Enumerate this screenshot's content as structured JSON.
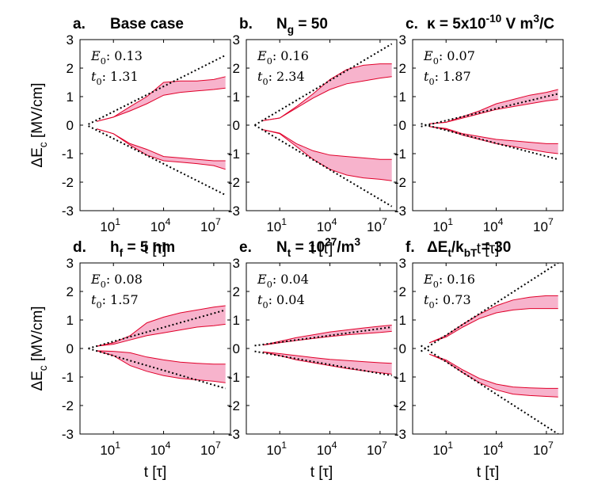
{
  "colors": {
    "band_fill": "#f7b3cc",
    "band_edge": "#e0002a",
    "trend": "#000000",
    "axes": "#000000"
  },
  "chart_data": [
    {
      "type": "area",
      "letter": "a.",
      "title": "Base case",
      "xlabel": "t [τ]",
      "ylabel": "ΔE_c [MV/cm]",
      "xlim": [
        0.1,
        100000000.0
      ],
      "xticks": [
        1,
        4,
        7
      ],
      "ylim": [
        -3,
        3
      ],
      "yticks": [
        -3,
        -2,
        -1,
        0,
        1,
        2,
        3
      ],
      "params": {
        "E0": "0.13",
        "t0": "1.31"
      },
      "series": [
        {
          "name": "upper band",
          "x_log10": [
            0,
            1,
            2,
            3,
            4,
            5,
            6,
            7,
            7.7
          ],
          "low": [
            0.13,
            0.28,
            0.5,
            0.75,
            1.05,
            1.15,
            1.2,
            1.25,
            1.3
          ],
          "high": [
            0.13,
            0.28,
            0.65,
            1.0,
            1.5,
            1.55,
            1.55,
            1.6,
            1.7
          ]
        },
        {
          "name": "lower band",
          "x_log10": [
            0,
            1,
            2,
            3,
            4,
            5,
            6,
            7,
            7.7
          ],
          "low": [
            -0.13,
            -0.3,
            -0.7,
            -1.05,
            -1.25,
            -1.3,
            -1.35,
            -1.42,
            -1.55
          ],
          "high": [
            -0.13,
            -0.3,
            -0.65,
            -0.85,
            -1.1,
            -1.15,
            -1.2,
            -1.25,
            -1.25
          ]
        },
        {
          "name": "upper trend",
          "x_log10": [
            -0.5,
            7.7
          ],
          "y": [
            0.03,
            2.45
          ]
        },
        {
          "name": "lower trend",
          "x_log10": [
            -0.5,
            7.7
          ],
          "y": [
            -0.03,
            -2.45
          ]
        }
      ]
    },
    {
      "type": "area",
      "letter": "b.",
      "title": "N_g = 50",
      "xlabel": "t [τ]",
      "ylabel": "",
      "xlim": [
        0.1,
        100000000.0
      ],
      "xticks": [
        1,
        4,
        7
      ],
      "ylim": [
        -3,
        3
      ],
      "yticks": [
        -3,
        -2,
        -1,
        0,
        1,
        2,
        3
      ],
      "params": {
        "E0": "0.16",
        "t0": "2.34"
      },
      "series": [
        {
          "name": "upper band",
          "x_log10": [
            0,
            1,
            2,
            3,
            4,
            5,
            6,
            7,
            7.7
          ],
          "low": [
            0.16,
            0.25,
            0.6,
            0.95,
            1.25,
            1.45,
            1.55,
            1.65,
            1.7
          ],
          "high": [
            0.16,
            0.25,
            0.65,
            1.1,
            1.6,
            1.95,
            2.1,
            2.15,
            2.15
          ]
        },
        {
          "name": "lower band",
          "x_log10": [
            0,
            1,
            2,
            3,
            4,
            5,
            6,
            7,
            7.7
          ],
          "low": [
            -0.16,
            -0.3,
            -0.75,
            -1.2,
            -1.55,
            -1.75,
            -1.85,
            -1.9,
            -1.95
          ],
          "high": [
            -0.16,
            -0.28,
            -0.65,
            -0.9,
            -1.05,
            -1.1,
            -1.15,
            -1.2,
            -1.2
          ]
        },
        {
          "name": "upper trend",
          "x_log10": [
            -0.5,
            7.7
          ],
          "y": [
            0.0,
            2.85
          ]
        },
        {
          "name": "lower trend",
          "x_log10": [
            -0.5,
            7.7
          ],
          "y": [
            0.0,
            -2.85
          ]
        }
      ]
    },
    {
      "type": "area",
      "letter": "c.",
      "title": "κ = 5x10^-10 V m^3/C",
      "xlabel": "t [τ]",
      "ylabel": "",
      "xlim": [
        0.1,
        100000000.0
      ],
      "xticks": [
        1,
        4,
        7
      ],
      "ylim": [
        -3,
        3
      ],
      "yticks": [
        -3,
        -2,
        -1,
        0,
        1,
        2,
        3
      ],
      "params": {
        "E0": "0.07",
        "t0": "1.87"
      },
      "series": [
        {
          "name": "upper band",
          "x_log10": [
            0,
            1,
            2,
            3,
            4,
            5,
            6,
            7,
            7.7
          ],
          "low": [
            0.05,
            0.1,
            0.25,
            0.4,
            0.55,
            0.65,
            0.75,
            0.85,
            0.9
          ],
          "high": [
            0.05,
            0.1,
            0.3,
            0.5,
            0.75,
            0.9,
            1.05,
            1.15,
            1.25
          ]
        },
        {
          "name": "lower band",
          "x_log10": [
            0,
            1,
            2,
            3,
            4,
            5,
            6,
            7,
            7.7
          ],
          "low": [
            -0.05,
            -0.15,
            -0.35,
            -0.5,
            -0.65,
            -0.75,
            -0.85,
            -0.95,
            -1.0
          ],
          "high": [
            -0.05,
            -0.12,
            -0.3,
            -0.4,
            -0.5,
            -0.55,
            -0.6,
            -0.65,
            -0.65
          ]
        },
        {
          "name": "upper trend",
          "x_log10": [
            -0.5,
            7.7
          ],
          "y": [
            -0.05,
            1.1
          ]
        },
        {
          "name": "lower trend",
          "x_log10": [
            -0.5,
            7.7
          ],
          "y": [
            0.05,
            -1.2
          ]
        }
      ]
    },
    {
      "type": "area",
      "letter": "d.",
      "title": "h_f = 5 nm",
      "xlabel": "t [τ]",
      "ylabel": "ΔE_c [MV/cm]",
      "xlim": [
        0.1,
        100000000.0
      ],
      "xticks": [
        1,
        4,
        7
      ],
      "ylim": [
        -3,
        3
      ],
      "yticks": [
        -3,
        -2,
        -1,
        0,
        1,
        2,
        3
      ],
      "params": {
        "E0": "0.08",
        "t0": "1.57"
      },
      "series": [
        {
          "name": "upper band",
          "x_log10": [
            0,
            1,
            2,
            3,
            4,
            5,
            6,
            7,
            7.7
          ],
          "low": [
            0.08,
            0.15,
            0.3,
            0.45,
            0.55,
            0.65,
            0.75,
            0.8,
            0.85
          ],
          "high": [
            0.08,
            0.2,
            0.45,
            0.9,
            1.1,
            1.25,
            1.35,
            1.45,
            1.5
          ]
        },
        {
          "name": "lower band",
          "x_log10": [
            0,
            1,
            2,
            3,
            4,
            5,
            6,
            7,
            7.7
          ],
          "low": [
            -0.08,
            -0.25,
            -0.6,
            -0.8,
            -0.95,
            -1.05,
            -1.1,
            -1.15,
            -1.2
          ],
          "high": [
            -0.08,
            -0.1,
            -0.15,
            -0.3,
            -0.4,
            -0.48,
            -0.52,
            -0.55,
            -0.55
          ]
        },
        {
          "name": "upper trend",
          "x_log10": [
            -0.5,
            7.7
          ],
          "y": [
            0.0,
            1.35
          ]
        },
        {
          "name": "lower trend",
          "x_log10": [
            -0.5,
            7.7
          ],
          "y": [
            0.0,
            -1.4
          ]
        }
      ]
    },
    {
      "type": "area",
      "letter": "e.",
      "title": "N_t = 10^27/m^3",
      "xlabel": "t [τ]",
      "ylabel": "",
      "xlim": [
        0.1,
        100000000.0
      ],
      "xticks": [
        1,
        4,
        7
      ],
      "ylim": [
        -3,
        3
      ],
      "yticks": [
        -3,
        -2,
        -1,
        0,
        1,
        2,
        3
      ],
      "params": {
        "E0": "0.04",
        "t0": "0.04"
      },
      "series": [
        {
          "name": "upper band",
          "x_log10": [
            0,
            1,
            2,
            3,
            4,
            5,
            6,
            7,
            7.7
          ],
          "low": [
            0.12,
            0.2,
            0.28,
            0.35,
            0.42,
            0.48,
            0.52,
            0.56,
            0.6
          ],
          "high": [
            0.12,
            0.25,
            0.38,
            0.48,
            0.58,
            0.65,
            0.72,
            0.78,
            0.82
          ]
        },
        {
          "name": "lower band",
          "x_log10": [
            0,
            1,
            2,
            3,
            4,
            5,
            6,
            7,
            7.7
          ],
          "low": [
            -0.12,
            -0.25,
            -0.4,
            -0.5,
            -0.6,
            -0.7,
            -0.78,
            -0.85,
            -0.9
          ],
          "high": [
            -0.12,
            -0.18,
            -0.25,
            -0.32,
            -0.38,
            -0.42,
            -0.46,
            -0.5,
            -0.52
          ]
        },
        {
          "name": "upper trend",
          "x_log10": [
            -0.5,
            7.7
          ],
          "y": [
            0.1,
            0.75
          ]
        },
        {
          "name": "lower trend",
          "x_log10": [
            -0.5,
            7.7
          ],
          "y": [
            -0.1,
            -0.95
          ]
        }
      ]
    },
    {
      "type": "area",
      "letter": "f.",
      "title": "ΔE_t/k_bT = 30",
      "xlabel": "t [τ]",
      "ylabel": "",
      "xlim": [
        0.1,
        100000000.0
      ],
      "xticks": [
        1,
        4,
        7
      ],
      "ylim": [
        -3,
        3
      ],
      "yticks": [
        -3,
        -2,
        -1,
        0,
        1,
        2,
        3
      ],
      "params": {
        "E0": "0.16",
        "t0": "0.73"
      },
      "series": [
        {
          "name": "upper band",
          "x_log10": [
            0,
            1,
            2,
            3,
            4,
            5,
            6,
            7,
            7.7
          ],
          "low": [
            0.2,
            0.4,
            0.75,
            1.05,
            1.25,
            1.35,
            1.4,
            1.4,
            1.4
          ],
          "high": [
            0.2,
            0.45,
            0.85,
            1.2,
            1.5,
            1.7,
            1.8,
            1.85,
            1.85
          ]
        },
        {
          "name": "lower band",
          "x_log10": [
            0,
            1,
            2,
            3,
            4,
            5,
            6,
            7,
            7.7
          ],
          "low": [
            -0.2,
            -0.45,
            -0.85,
            -1.2,
            -1.45,
            -1.6,
            -1.65,
            -1.68,
            -1.7
          ],
          "high": [
            -0.2,
            -0.4,
            -0.75,
            -1.05,
            -1.25,
            -1.35,
            -1.38,
            -1.4,
            -1.4
          ]
        },
        {
          "name": "upper trend",
          "x_log10": [
            -0.5,
            7.7
          ],
          "y": [
            -0.1,
            3.0
          ]
        },
        {
          "name": "lower trend",
          "x_log10": [
            -0.5,
            7.7
          ],
          "y": [
            0.1,
            -3.0
          ]
        }
      ]
    }
  ]
}
